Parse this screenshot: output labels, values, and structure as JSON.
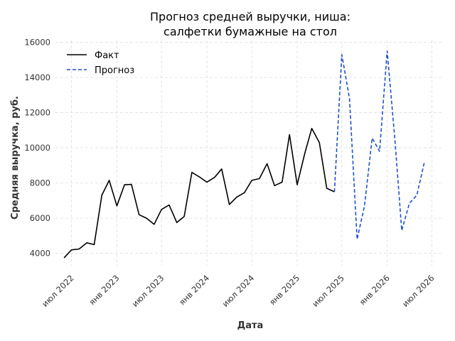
{
  "chart_data": {
    "type": "line",
    "title": [
      "Прогноз средней выручки, ниша:",
      "салфетки бумажные на стол"
    ],
    "xlabel": "Дата",
    "ylabel": "Средняя выручка, руб.",
    "ylim": [
      3300,
      16100
    ],
    "xlim": [
      "2022-04-27",
      "2026-08-12"
    ],
    "yticks": [
      4000,
      6000,
      8000,
      10000,
      12000,
      14000,
      16000
    ],
    "xticks": [
      {
        "date": "2022-07-01",
        "label": "июл 2022"
      },
      {
        "date": "2023-01-01",
        "label": "янв 2023"
      },
      {
        "date": "2023-07-01",
        "label": "июл 2023"
      },
      {
        "date": "2024-01-01",
        "label": "янв 2024"
      },
      {
        "date": "2024-07-01",
        "label": "июл 2024"
      },
      {
        "date": "2025-01-01",
        "label": "янв 2025"
      },
      {
        "date": "2025-07-01",
        "label": "июл 2025"
      },
      {
        "date": "2026-01-01",
        "label": "янв 2026"
      },
      {
        "date": "2026-07-01",
        "label": "июл 2026"
      }
    ],
    "grid": true,
    "legend_position": "top-left",
    "series": [
      {
        "name": "Факт",
        "color": "#000000",
        "style": "solid",
        "points": [
          [
            "2022-06-01",
            3750
          ],
          [
            "2022-07-01",
            4200
          ],
          [
            "2022-08-01",
            4250
          ],
          [
            "2022-09-01",
            4600
          ],
          [
            "2022-10-01",
            4500
          ],
          [
            "2022-11-01",
            7300
          ],
          [
            "2022-12-01",
            8150
          ],
          [
            "2023-01-01",
            6700
          ],
          [
            "2023-02-01",
            7900
          ],
          [
            "2023-03-01",
            7920
          ],
          [
            "2023-04-01",
            6200
          ],
          [
            "2023-05-01",
            6000
          ],
          [
            "2023-06-01",
            5650
          ],
          [
            "2023-07-01",
            6500
          ],
          [
            "2023-08-01",
            6750
          ],
          [
            "2023-09-01",
            5750
          ],
          [
            "2023-10-01",
            6100
          ],
          [
            "2023-11-01",
            8600
          ],
          [
            "2023-12-01",
            8350
          ],
          [
            "2024-01-01",
            8050
          ],
          [
            "2024-02-01",
            8320
          ],
          [
            "2024-03-01",
            8800
          ],
          [
            "2024-04-01",
            6780
          ],
          [
            "2024-05-01",
            7200
          ],
          [
            "2024-06-01",
            7450
          ],
          [
            "2024-07-01",
            8150
          ],
          [
            "2024-08-01",
            8250
          ],
          [
            "2024-09-01",
            9100
          ],
          [
            "2024-10-01",
            7850
          ],
          [
            "2024-11-01",
            8050
          ],
          [
            "2024-12-01",
            10750
          ],
          [
            "2025-01-01",
            7900
          ],
          [
            "2025-02-01",
            9700
          ],
          [
            "2025-03-01",
            11100
          ],
          [
            "2025-04-01",
            10300
          ],
          [
            "2025-05-01",
            7700
          ],
          [
            "2025-06-01",
            7500
          ]
        ]
      },
      {
        "name": "Прогноз",
        "color": "#1a4fd6",
        "style": "dashed",
        "points": [
          [
            "2025-06-01",
            7500
          ],
          [
            "2025-07-01",
            15300
          ],
          [
            "2025-08-01",
            12800
          ],
          [
            "2025-09-01",
            4800
          ],
          [
            "2025-10-01",
            6700
          ],
          [
            "2025-11-01",
            10550
          ],
          [
            "2025-12-01",
            9800
          ],
          [
            "2026-01-01",
            15500
          ],
          [
            "2026-02-01",
            10500
          ],
          [
            "2026-03-01",
            5300
          ],
          [
            "2026-04-01",
            6850
          ],
          [
            "2026-05-01",
            7300
          ],
          [
            "2026-06-01",
            9200
          ]
        ]
      }
    ]
  }
}
